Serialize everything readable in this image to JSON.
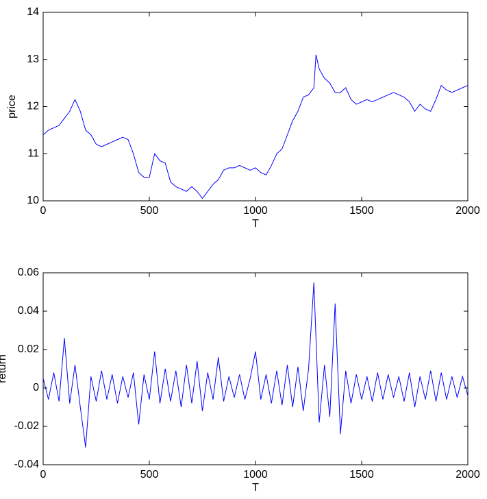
{
  "chart_data": [
    {
      "type": "line",
      "ylabel": "price",
      "xlabel": "T",
      "xlim": [
        0,
        2000
      ],
      "ylim": [
        10,
        14
      ],
      "xticks": [
        0,
        500,
        1000,
        1500,
        2000
      ],
      "yticks": [
        10,
        11,
        12,
        13,
        14
      ],
      "series": [
        {
          "color": "#0000ff",
          "x": [
            0,
            25,
            50,
            75,
            100,
            125,
            150,
            175,
            200,
            225,
            250,
            275,
            300,
            325,
            350,
            375,
            400,
            425,
            450,
            475,
            500,
            525,
            550,
            575,
            600,
            625,
            650,
            675,
            700,
            725,
            750,
            775,
            800,
            825,
            850,
            875,
            900,
            925,
            950,
            975,
            1000,
            1025,
            1050,
            1075,
            1100,
            1125,
            1150,
            1175,
            1200,
            1225,
            1250,
            1275,
            1285,
            1300,
            1325,
            1350,
            1375,
            1400,
            1425,
            1450,
            1475,
            1500,
            1525,
            1550,
            1575,
            1600,
            1625,
            1650,
            1675,
            1700,
            1725,
            1750,
            1775,
            1800,
            1825,
            1850,
            1875,
            1900,
            1925,
            1950,
            1975,
            2000
          ],
          "values": [
            11.4,
            11.5,
            11.55,
            11.6,
            11.75,
            11.9,
            12.15,
            11.9,
            11.5,
            11.4,
            11.2,
            11.15,
            11.2,
            11.25,
            11.3,
            11.35,
            11.3,
            11.0,
            10.6,
            10.5,
            10.5,
            11.0,
            10.85,
            10.8,
            10.4,
            10.3,
            10.25,
            10.2,
            10.3,
            10.2,
            10.05,
            10.2,
            10.35,
            10.45,
            10.65,
            10.7,
            10.7,
            10.75,
            10.7,
            10.65,
            10.7,
            10.6,
            10.55,
            10.75,
            11.0,
            11.1,
            11.4,
            11.7,
            11.9,
            12.2,
            12.25,
            12.4,
            13.1,
            12.8,
            12.6,
            12.5,
            12.3,
            12.3,
            12.4,
            12.15,
            12.05,
            12.1,
            12.15,
            12.1,
            12.15,
            12.2,
            12.25,
            12.3,
            12.25,
            12.2,
            12.1,
            11.9,
            12.05,
            11.95,
            11.9,
            12.15,
            12.45,
            12.35,
            12.3,
            12.35,
            12.4,
            12.45
          ]
        }
      ]
    },
    {
      "type": "line",
      "ylabel": "return",
      "xlabel": "T",
      "xlim": [
        0,
        2000
      ],
      "ylim": [
        -0.04,
        0.06
      ],
      "xticks": [
        0,
        500,
        1000,
        1500,
        2000
      ],
      "yticks": [
        -0.04,
        -0.02,
        0,
        0.02,
        0.04,
        0.06
      ],
      "series": [
        {
          "color": "#0000ff",
          "x": [
            0,
            25,
            50,
            75,
            100,
            125,
            150,
            175,
            200,
            225,
            250,
            275,
            300,
            325,
            350,
            375,
            400,
            425,
            450,
            475,
            500,
            525,
            550,
            575,
            600,
            625,
            650,
            675,
            700,
            725,
            750,
            775,
            800,
            825,
            850,
            875,
            900,
            925,
            950,
            975,
            1000,
            1025,
            1050,
            1075,
            1100,
            1125,
            1150,
            1175,
            1200,
            1225,
            1250,
            1275,
            1300,
            1325,
            1350,
            1375,
            1400,
            1425,
            1450,
            1475,
            1500,
            1525,
            1550,
            1575,
            1600,
            1625,
            1650,
            1675,
            1700,
            1725,
            1750,
            1775,
            1800,
            1825,
            1850,
            1875,
            1900,
            1925,
            1950,
            1975,
            2000
          ],
          "values": [
            0.005,
            -0.006,
            0.008,
            -0.007,
            0.026,
            -0.008,
            0.012,
            -0.01,
            -0.031,
            0.006,
            -0.007,
            0.009,
            -0.006,
            0.007,
            -0.008,
            0.006,
            -0.005,
            0.008,
            -0.019,
            0.007,
            -0.006,
            0.019,
            -0.008,
            0.01,
            -0.007,
            0.009,
            -0.01,
            0.012,
            -0.008,
            0.014,
            -0.012,
            0.008,
            -0.006,
            0.016,
            -0.007,
            0.006,
            -0.005,
            0.007,
            -0.006,
            0.005,
            0.019,
            -0.006,
            0.007,
            -0.008,
            0.009,
            -0.009,
            0.012,
            -0.01,
            0.011,
            -0.012,
            0.01,
            0.055,
            -0.018,
            0.012,
            -0.015,
            0.044,
            -0.024,
            0.009,
            -0.008,
            0.007,
            -0.006,
            0.006,
            -0.007,
            0.008,
            -0.006,
            0.007,
            -0.005,
            0.006,
            -0.007,
            0.008,
            -0.01,
            0.006,
            -0.006,
            0.009,
            -0.007,
            0.008,
            -0.006,
            0.006,
            -0.005,
            0.006,
            -0.004
          ]
        }
      ]
    }
  ]
}
